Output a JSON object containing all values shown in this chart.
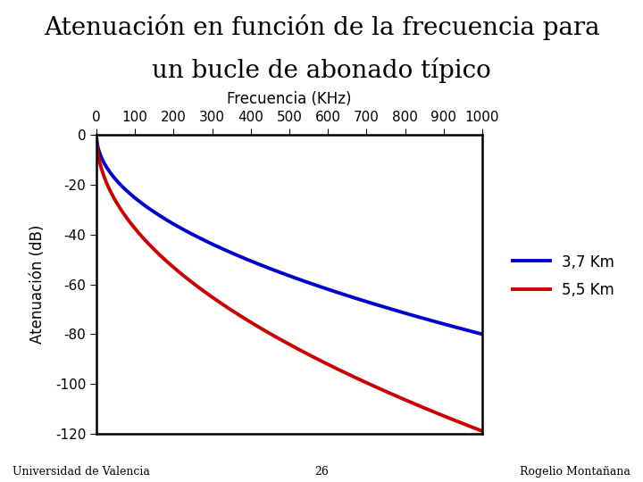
{
  "title_line1": "Atenuación en función de la frecuencia para",
  "title_line2": "un bucle de abonado típico",
  "xlabel": "Frecuencia (KHz)",
  "ylabel": "Atenuación (dB)",
  "xmin": 0,
  "xmax": 1000,
  "ymin": -120,
  "ymax": 0,
  "xticks": [
    0,
    100,
    200,
    300,
    400,
    500,
    600,
    700,
    800,
    900,
    1000
  ],
  "yticks": [
    0,
    -20,
    -40,
    -60,
    -80,
    -100,
    -120
  ],
  "ytick_labels": [
    "0",
    "-20",
    "-40",
    "-60",
    "-80",
    "-100",
    "-120"
  ],
  "legend_37": "3,7 Km",
  "legend_55": "5,5 Km",
  "color_37": "#0000cc",
  "color_55": "#cc0000",
  "line_width": 2.8,
  "title_fontsize": 20,
  "label_fontsize": 12,
  "tick_fontsize": 11,
  "legend_fontsize": 12,
  "footer_left": "Universidad de Valencia",
  "footer_center": "26",
  "footer_right": "Rogelio Montañana",
  "bg_color": "#ffffff",
  "km_37": 3.7,
  "km_55": 5.5
}
